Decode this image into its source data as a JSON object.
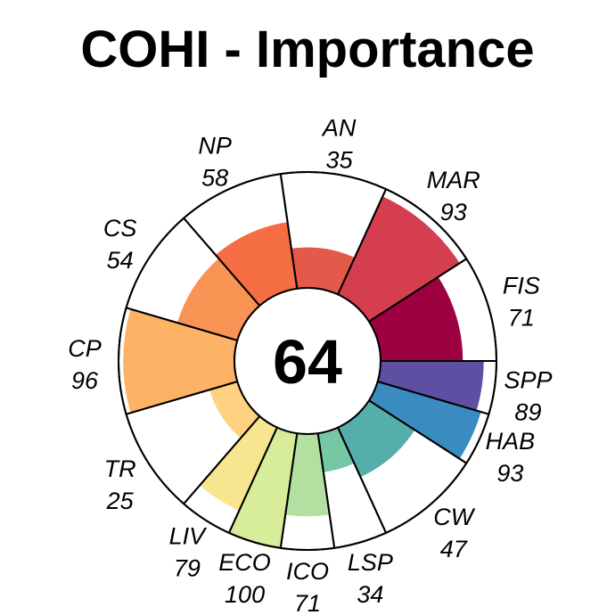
{
  "chart_data": {
    "type": "flower",
    "title": "COHI - Importance",
    "center_score": "64",
    "max_value": 100,
    "segments": [
      {
        "label": "FIS",
        "value": 71,
        "weight": 1,
        "color": "#9e0142"
      },
      {
        "label": "MAR",
        "value": 93,
        "weight": 1,
        "color": "#d53e4f"
      },
      {
        "label": "AN",
        "value": 35,
        "weight": 1,
        "color": "#e35a4a"
      },
      {
        "label": "NP",
        "value": 58,
        "weight": 1,
        "color": "#f46d43"
      },
      {
        "label": "CS",
        "value": 54,
        "weight": 1,
        "color": "#f99455"
      },
      {
        "label": "CP",
        "value": 96,
        "weight": 1,
        "color": "#fdb366"
      },
      {
        "label": "TR",
        "value": 25,
        "weight": 1,
        "color": "#fed280"
      },
      {
        "label": "LIV",
        "value": 79,
        "weight": 0.5,
        "color": "#f7e58f"
      },
      {
        "label": "ECO",
        "value": 100,
        "weight": 0.5,
        "color": "#d8ed9a"
      },
      {
        "label": "ICO",
        "value": 71,
        "weight": 0.5,
        "color": "#b3e0a0"
      },
      {
        "label": "LSP",
        "value": 34,
        "weight": 0.5,
        "color": "#75c8a4"
      },
      {
        "label": "CW",
        "value": 47,
        "weight": 1,
        "color": "#56aeab"
      },
      {
        "label": "HAB",
        "value": 93,
        "weight": 0.5,
        "color": "#3a8bc0"
      },
      {
        "label": "SPP",
        "value": 89,
        "weight": 0.5,
        "color": "#5e4fa2"
      }
    ]
  }
}
